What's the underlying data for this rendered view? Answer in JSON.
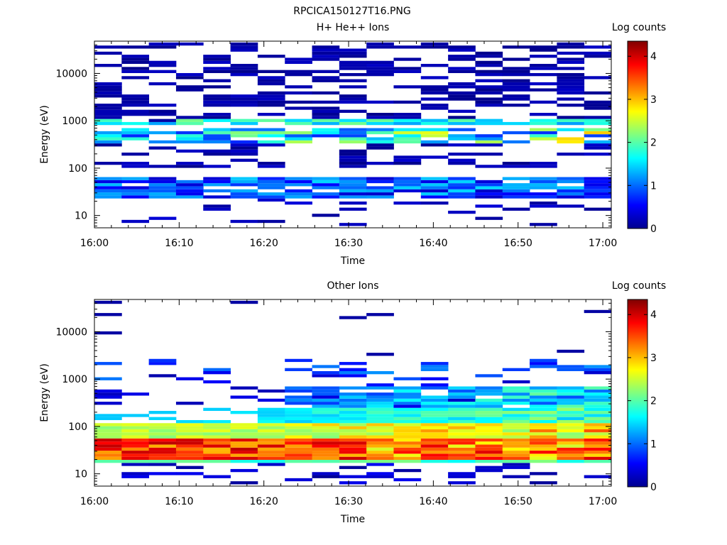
{
  "figure": {
    "title": "RPCICA150127T16.PNG"
  },
  "chart_data": [
    {
      "type": "heatmap",
      "title": "H+ He++ Ions",
      "xlabel": "Time",
      "ylabel": "Energy (eV)",
      "x_tick_labels": [
        "16:00",
        "16:10",
        "16:20",
        "16:30",
        "16:40",
        "16:50",
        "17:00"
      ],
      "y_tick_labels": [
        "10",
        "100",
        "1000",
        "10000"
      ],
      "y_scale": "log",
      "ylim": [
        5.5,
        48000
      ],
      "colorbar": {
        "label": "Log counts",
        "ticks": [
          "0",
          "1",
          "2",
          "3",
          "4"
        ],
        "range": [
          0,
          4.35
        ]
      },
      "time_bins": [
        "16:00",
        "16:03",
        "16:06",
        "16:10",
        "16:13",
        "16:16",
        "16:19",
        "16:22",
        "16:26",
        "16:29",
        "16:32",
        "16:35",
        "16:38",
        "16:42",
        "16:45",
        "16:48",
        "16:51",
        "16:54",
        "16:58"
      ],
      "bands": [
        {
          "energy_range": [
            6,
            100
          ],
          "log_counts_max": 0.8,
          "note": "sparse"
        },
        {
          "energy_range": [
            25,
            60
          ],
          "log_counts_typical": 1.0
        },
        {
          "energy_range": [
            350,
            700
          ],
          "log_counts_typical": 1.8,
          "log_counts_max": 3.2
        },
        {
          "energy_range": [
            850,
            1100
          ],
          "log_counts_typical": 1.7
        },
        {
          "energy_range": [
            1000,
            45000
          ],
          "log_counts_typical": 0.1,
          "note": "sparse"
        }
      ]
    },
    {
      "type": "heatmap",
      "title": "Other Ions",
      "xlabel": "Time",
      "ylabel": "Energy (eV)",
      "x_tick_labels": [
        "16:00",
        "16:10",
        "16:20",
        "16:30",
        "16:40",
        "16:50",
        "17:00"
      ],
      "y_tick_labels": [
        "10",
        "100",
        "1000",
        "10000"
      ],
      "y_scale": "log",
      "ylim": [
        5.5,
        48000
      ],
      "colorbar": {
        "label": "Log counts",
        "ticks": [
          "0",
          "1",
          "2",
          "3",
          "4"
        ],
        "range": [
          0,
          4.35
        ]
      },
      "time_bins": [
        "16:00",
        "16:03",
        "16:06",
        "16:10",
        "16:13",
        "16:16",
        "16:19",
        "16:22",
        "16:26",
        "16:29",
        "16:32",
        "16:35",
        "16:38",
        "16:42",
        "16:45",
        "16:48",
        "16:51",
        "16:54",
        "16:58"
      ],
      "bands": [
        {
          "energy_range": [
            20,
            60
          ],
          "log_counts_typical": 3.4,
          "log_counts_max": 4.2
        },
        {
          "energy_range": [
            60,
            200
          ],
          "log_counts_typical": 2.3
        },
        {
          "energy_range": [
            200,
            600
          ],
          "log_counts_typical": 1.2,
          "note": "after 16:22"
        },
        {
          "energy_range": [
            1000,
            2500
          ],
          "log_counts_typical": 0.3,
          "note": "sparse"
        },
        {
          "energy_range": [
            6,
            20
          ],
          "log_counts_typical": 0.2,
          "note": "sparse"
        }
      ]
    }
  ]
}
